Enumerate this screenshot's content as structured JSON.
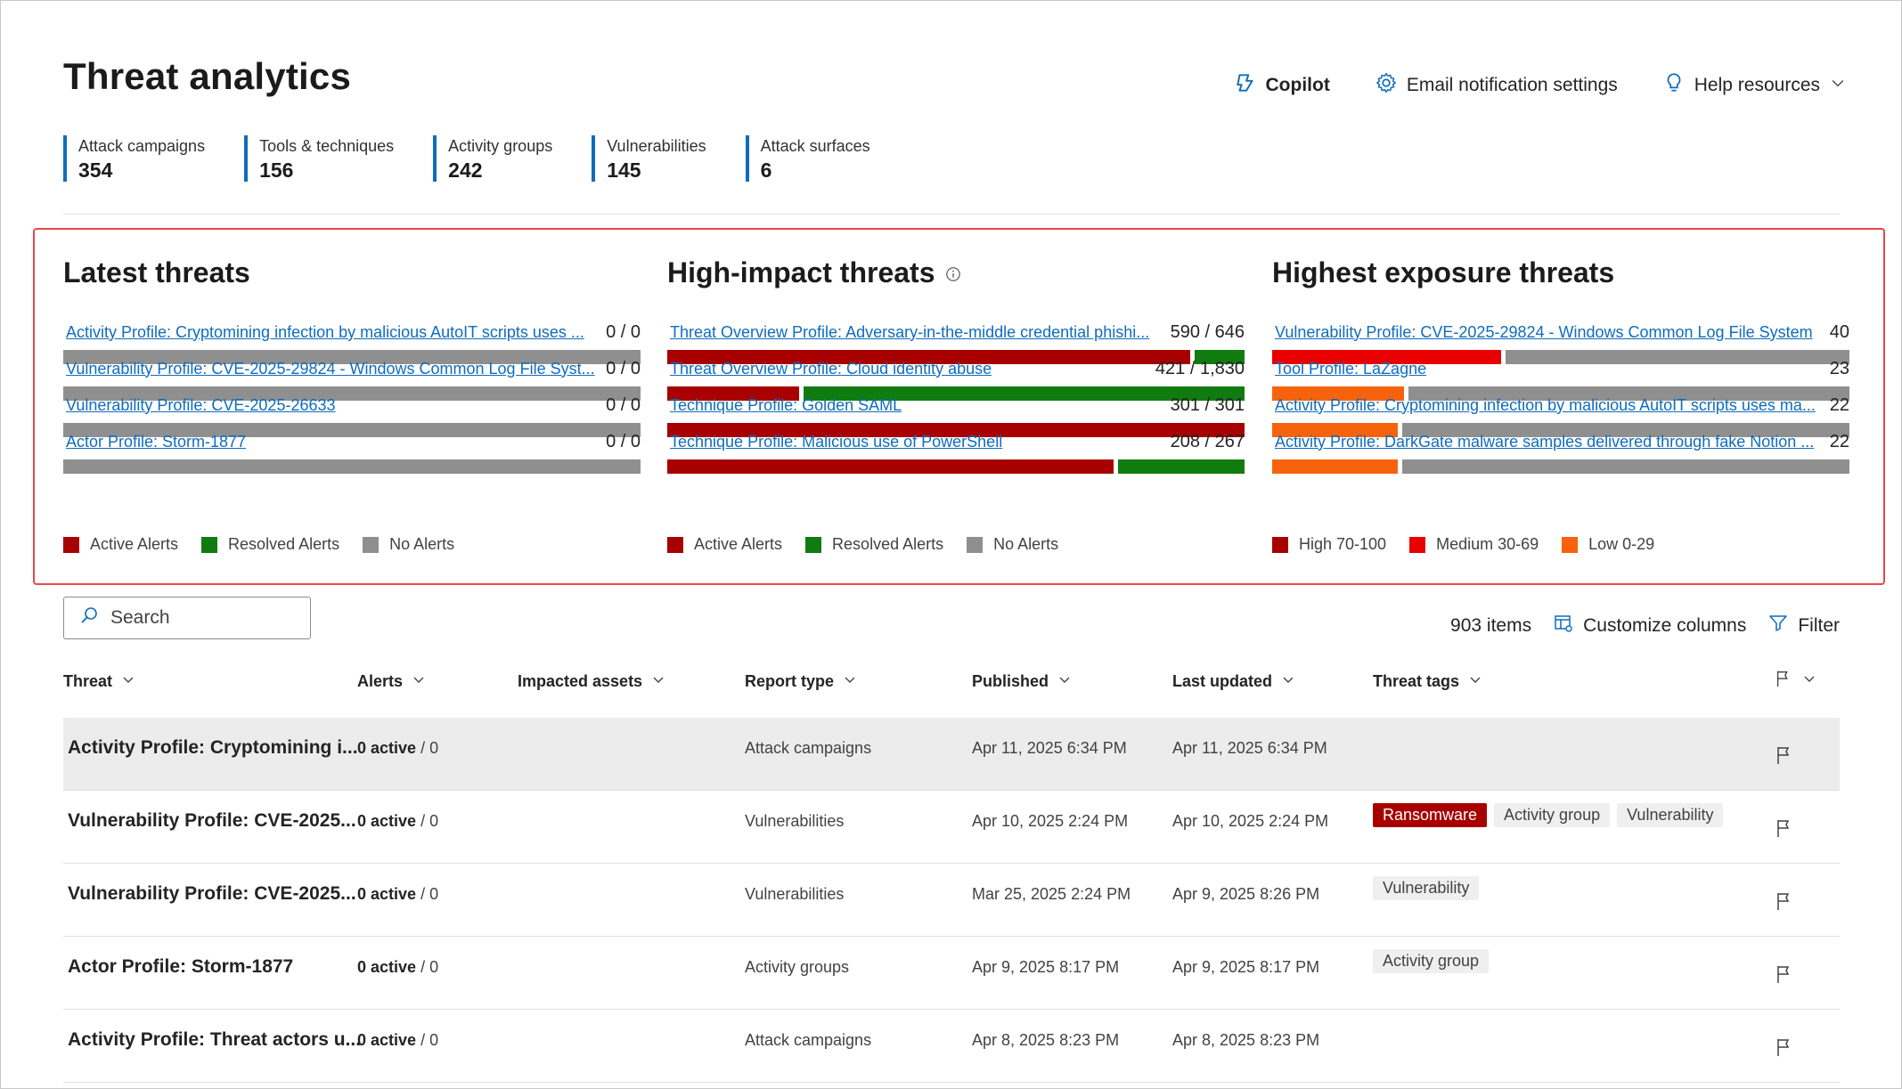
{
  "page": {
    "title": "Threat analytics"
  },
  "header": {
    "copilot_label": "Copilot",
    "email_label": "Email notification settings",
    "help_label": "Help resources"
  },
  "stats": [
    {
      "label": "Attack campaigns",
      "value": "354"
    },
    {
      "label": "Tools & techniques",
      "value": "156"
    },
    {
      "label": "Activity groups",
      "value": "242"
    },
    {
      "label": "Vulnerabilities",
      "value": "145"
    },
    {
      "label": "Attack surfaces",
      "value": "6"
    }
  ],
  "colors": {
    "active": "#a80000",
    "resolved": "#107c10",
    "none": "#8f8f8f",
    "high": "#a80000",
    "medium": "#e80000",
    "low": "#f7630c",
    "accent": "#0f6cbd"
  },
  "latest": {
    "title": "Latest threats",
    "items": [
      {
        "name": "Activity Profile: Cryptomining infection by malicious AutoIT scripts uses ...",
        "count": "0 / 0",
        "active": 0,
        "total": 0
      },
      {
        "name": "Vulnerability Profile: CVE-2025-29824 - Windows Common Log File Syst...",
        "count": "0 / 0",
        "active": 0,
        "total": 0
      },
      {
        "name": "Vulnerability Profile: CVE-2025-26633",
        "count": "0 / 0",
        "active": 0,
        "total": 0
      },
      {
        "name": "Actor Profile: Storm-1877",
        "count": "0 / 0",
        "active": 0,
        "total": 0
      }
    ],
    "legend": [
      "Active Alerts",
      "Resolved Alerts",
      "No Alerts"
    ]
  },
  "high_impact": {
    "title": "High-impact threats",
    "items": [
      {
        "name": "Threat Overview Profile: Adversary-in-the-middle credential phishi...",
        "count": "590 / 646",
        "active": 590,
        "total": 646
      },
      {
        "name": "Threat Overview Profile: Cloud identity abuse",
        "count": "421 / 1,830",
        "active": 421,
        "total": 1830
      },
      {
        "name": "Technique Profile: Golden SAML",
        "count": "301 / 301",
        "active": 301,
        "total": 301
      },
      {
        "name": "Technique Profile: Malicious use of PowerShell",
        "count": "208 / 267",
        "active": 208,
        "total": 267
      }
    ],
    "legend": [
      "Active Alerts",
      "Resolved Alerts",
      "No Alerts"
    ]
  },
  "exposure": {
    "title": "Highest exposure threats",
    "items": [
      {
        "name": "Vulnerability Profile: CVE-2025-29824 - Windows Common Log File System",
        "count": "40",
        "score": 40,
        "level": "medium"
      },
      {
        "name": "Tool Profile: LaZagne",
        "count": "23",
        "score": 23,
        "level": "low"
      },
      {
        "name": "Activity Profile: Cryptomining infection by malicious AutoIT scripts uses ma...",
        "count": "22",
        "score": 22,
        "level": "low"
      },
      {
        "name": "Activity Profile: DarkGate malware samples delivered through fake Notion ...",
        "count": "22",
        "score": 22,
        "level": "low"
      }
    ],
    "legend": [
      "High 70-100",
      "Medium 30-69",
      "Low 0-29"
    ]
  },
  "toolbar": {
    "search_placeholder": "Search",
    "items_count": "903 items",
    "customize_label": "Customize columns",
    "filter_label": "Filter"
  },
  "table": {
    "columns": [
      "Threat",
      "Alerts",
      "Impacted assets",
      "Report type",
      "Published",
      "Last updated",
      "Threat tags"
    ],
    "rows": [
      {
        "name": "Activity Profile: Cryptomining i...",
        "alerts_active": "0 active",
        "alerts_total": " / 0",
        "report_type": "Attack campaigns",
        "published": "Apr 11, 2025 6:34 PM",
        "updated": "Apr 11, 2025 6:34 PM",
        "tags": []
      },
      {
        "name": "Vulnerability Profile: CVE-2025...",
        "alerts_active": "0 active",
        "alerts_total": " / 0",
        "report_type": "Vulnerabilities",
        "published": "Apr 10, 2025 2:24 PM",
        "updated": "Apr 10, 2025 2:24 PM",
        "tags": [
          "Ransomware",
          "Activity group",
          "Vulnerability"
        ]
      },
      {
        "name": "Vulnerability Profile: CVE-2025...",
        "alerts_active": "0 active",
        "alerts_total": " / 0",
        "report_type": "Vulnerabilities",
        "published": "Mar 25, 2025 2:24 PM",
        "updated": "Apr 9, 2025 8:26 PM",
        "tags": [
          "Vulnerability"
        ]
      },
      {
        "name": "Actor Profile: Storm-1877",
        "alerts_active": "0 active",
        "alerts_total": " / 0",
        "report_type": "Activity groups",
        "published": "Apr 9, 2025 8:17 PM",
        "updated": "Apr 9, 2025 8:17 PM",
        "tags": [
          "Activity group"
        ]
      },
      {
        "name": "Activity Profile: Threat actors u...",
        "alerts_active": "0 active",
        "alerts_total": " / 0",
        "report_type": "Attack campaigns",
        "published": "Apr 8, 2025 8:23 PM",
        "updated": "Apr 8, 2025 8:23 PM",
        "tags": []
      }
    ]
  }
}
